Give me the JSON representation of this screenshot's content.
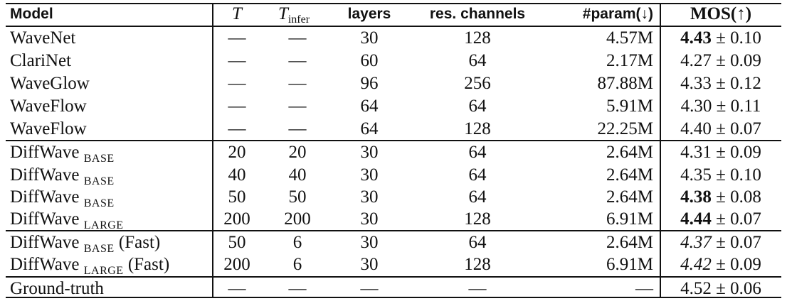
{
  "table": {
    "headers": {
      "model": "Model",
      "T": "T",
      "T_infer_base": "T",
      "T_infer_sub": "infer",
      "layers": "layers",
      "res_channels": "res. channels",
      "param": "#param(↓)",
      "mos": "MOS(↑)"
    },
    "rows": [
      {
        "model": "WaveNet",
        "model_sub": "",
        "model_suffix": "",
        "T": "—",
        "T_infer": "—",
        "layers": "30",
        "res": "128",
        "param": "4.57M",
        "mos_val": "4.43",
        "mos_pm": " ± 0.10",
        "mos_style": "bold"
      },
      {
        "model": "ClariNet",
        "model_sub": "",
        "model_suffix": "",
        "T": "—",
        "T_infer": "—",
        "layers": "60",
        "res": "64",
        "param": "2.17M",
        "mos_val": "4.27",
        "mos_pm": " ± 0.09",
        "mos_style": "normal"
      },
      {
        "model": "WaveGlow",
        "model_sub": "",
        "model_suffix": "",
        "T": "—",
        "T_infer": "—",
        "layers": "96",
        "res": "256",
        "param": "87.88M",
        "mos_val": "4.33",
        "mos_pm": " ± 0.12",
        "mos_style": "normal"
      },
      {
        "model": "WaveFlow",
        "model_sub": "",
        "model_suffix": "",
        "T": "—",
        "T_infer": "—",
        "layers": "64",
        "res": "64",
        "param": "5.91M",
        "mos_val": "4.30",
        "mos_pm": " ± 0.11",
        "mos_style": "normal"
      },
      {
        "model": "WaveFlow",
        "model_sub": "",
        "model_suffix": "",
        "T": "—",
        "T_infer": "—",
        "layers": "64",
        "res": "128",
        "param": "22.25M",
        "mos_val": "4.40",
        "mos_pm": " ± 0.07",
        "mos_style": "normal"
      },
      {
        "model": "DiffWave ",
        "model_sub": "BASE",
        "model_suffix": "",
        "T": "20",
        "T_infer": "20",
        "layers": "30",
        "res": "64",
        "param": "2.64M",
        "mos_val": "4.31",
        "mos_pm": " ± 0.09",
        "mos_style": "normal"
      },
      {
        "model": "DiffWave ",
        "model_sub": "BASE",
        "model_suffix": "",
        "T": "40",
        "T_infer": "40",
        "layers": "30",
        "res": "64",
        "param": "2.64M",
        "mos_val": "4.35",
        "mos_pm": " ± 0.10",
        "mos_style": "normal"
      },
      {
        "model": "DiffWave ",
        "model_sub": "BASE",
        "model_suffix": "",
        "T": "50",
        "T_infer": "50",
        "layers": "30",
        "res": "64",
        "param": "2.64M",
        "mos_val": "4.38",
        "mos_pm": " ± 0.08",
        "mos_style": "bold"
      },
      {
        "model": "DiffWave ",
        "model_sub": "LARGE",
        "model_suffix": "",
        "T": "200",
        "T_infer": "200",
        "layers": "30",
        "res": "128",
        "param": "6.91M",
        "mos_val": "4.44",
        "mos_pm": " ± 0.07",
        "mos_style": "bold"
      },
      {
        "model": "DiffWave ",
        "model_sub": "BASE",
        "model_suffix": " (Fast)",
        "T": "50",
        "T_infer": "6",
        "layers": "30",
        "res": "64",
        "param": "2.64M",
        "mos_val": "4.37",
        "mos_pm": " ± 0.07",
        "mos_style": "italic"
      },
      {
        "model": "DiffWave ",
        "model_sub": "LARGE",
        "model_suffix": " (Fast)",
        "T": "200",
        "T_infer": "6",
        "layers": "30",
        "res": "128",
        "param": "6.91M",
        "mos_val": "4.42",
        "mos_pm": " ± 0.09",
        "mos_style": "italic"
      },
      {
        "model": "Ground-truth",
        "model_sub": "",
        "model_suffix": "",
        "T": "—",
        "T_infer": "—",
        "layers": "—",
        "res": "—",
        "param": "—",
        "mos_val": "4.52",
        "mos_pm": " ± 0.06",
        "mos_style": "normal"
      }
    ]
  }
}
